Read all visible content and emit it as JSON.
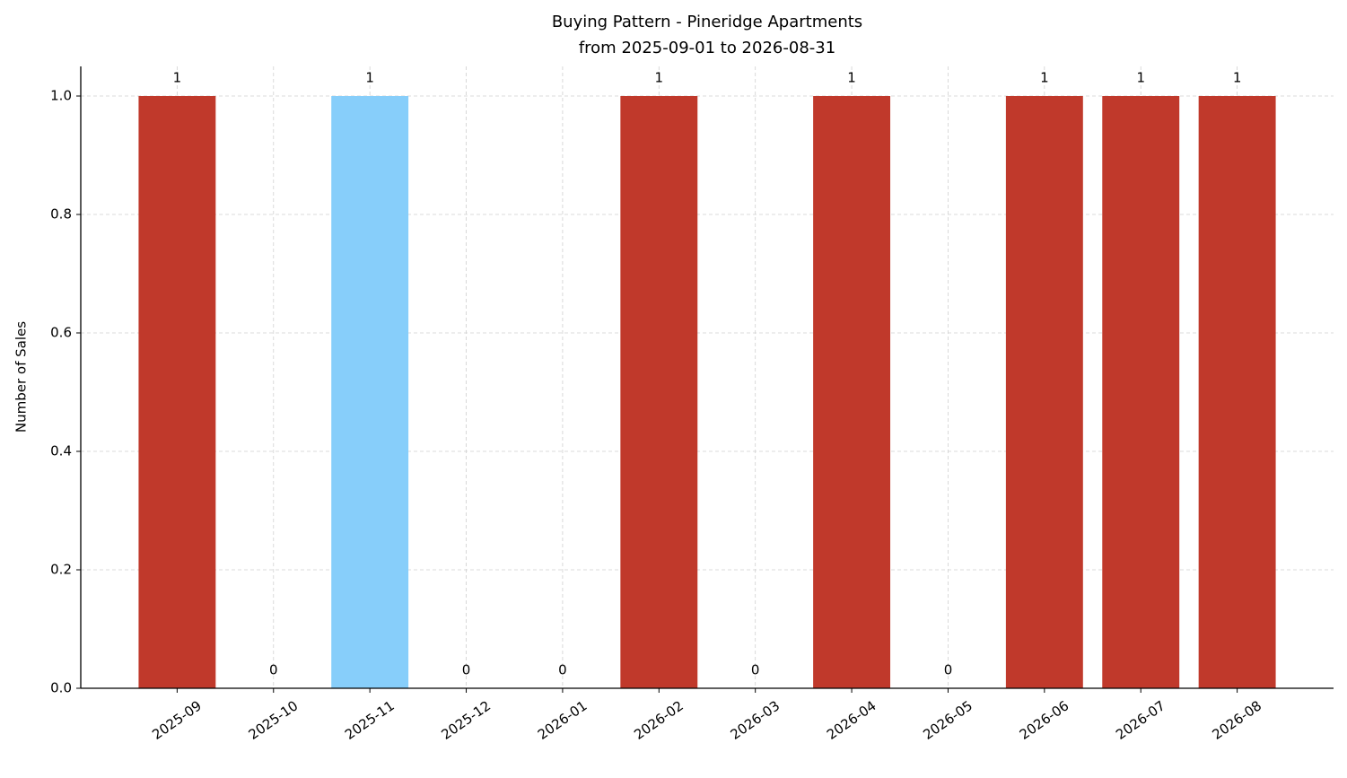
{
  "chart_data": {
    "type": "bar",
    "title": "Buying Pattern - Pineridge Apartments",
    "subtitle": "from 2025-09-01 to 2026-08-31",
    "y_label": "Number of Sales",
    "categories": [
      "2025-09",
      "2025-10",
      "2025-11",
      "2025-12",
      "2026-01",
      "2026-02",
      "2026-03",
      "2026-04",
      "2026-05",
      "2026-06",
      "2026-07",
      "2026-08"
    ],
    "values": [
      1,
      0,
      1,
      0,
      0,
      1,
      0,
      1,
      0,
      1,
      1,
      1
    ],
    "colors": [
      "#c0392b",
      "#c0392b",
      "#87cefa",
      "#c0392b",
      "#c0392b",
      "#c0392b",
      "#c0392b",
      "#c0392b",
      "#c0392b",
      "#c0392b",
      "#c0392b",
      "#c0392b"
    ],
    "ylim": [
      0,
      1.05
    ],
    "yticks": [
      {
        "value": 0,
        "label": "0.0"
      },
      {
        "value": 0.2,
        "label": "0.2"
      },
      {
        "value": 0.4,
        "label": "0.4"
      },
      {
        "value": 0.6,
        "label": "0.6"
      },
      {
        "value": 0.8,
        "label": "0.8"
      },
      {
        "value": 1.0,
        "label": "1.0"
      }
    ],
    "grid": true
  }
}
